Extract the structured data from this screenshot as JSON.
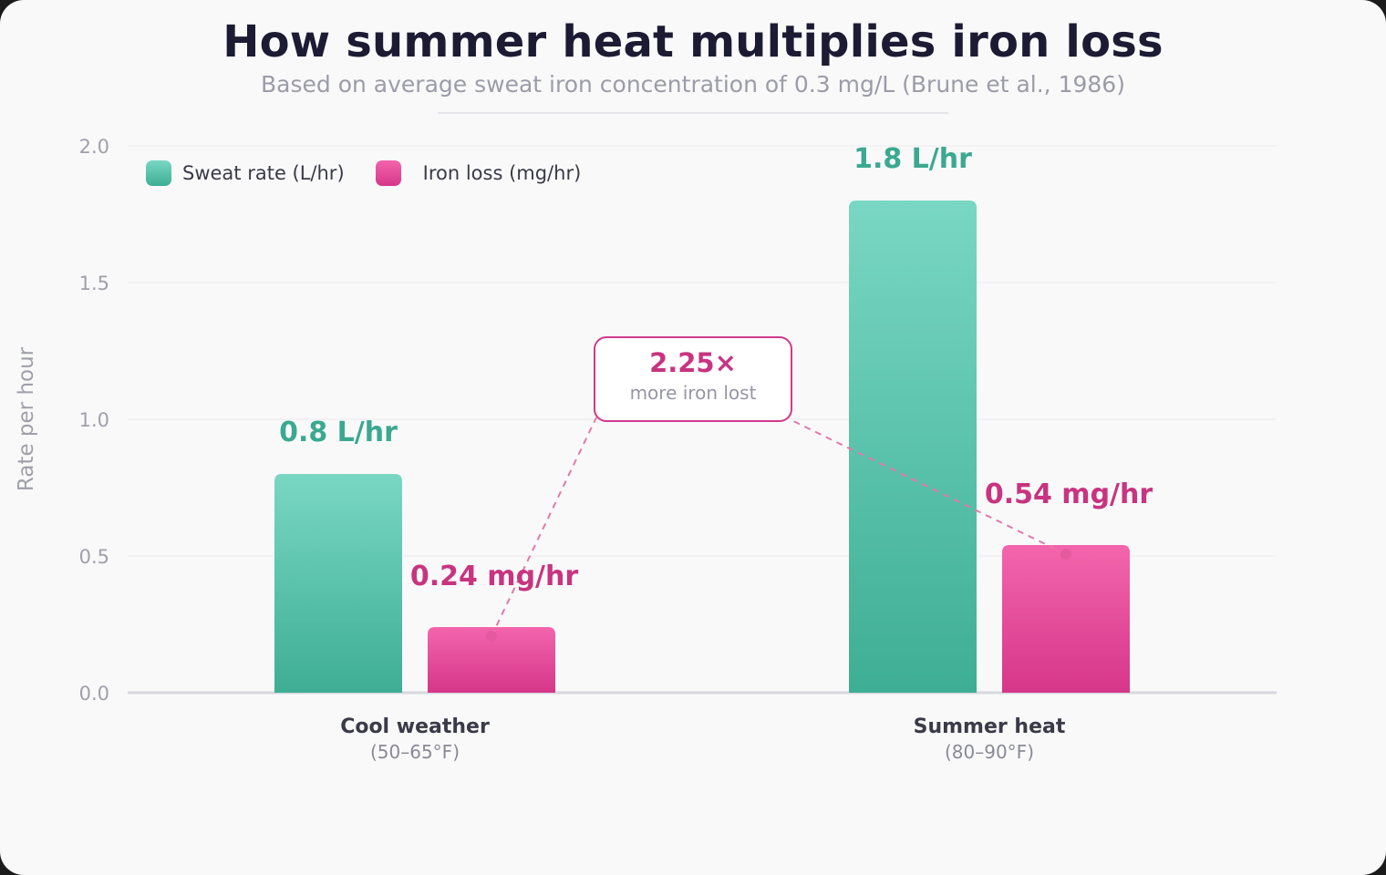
{
  "title": "How summer heat multiplies iron loss",
  "subtitle": "Based on average sweat iron concentration of 0.3 mg/L (Brune et al., 1986)",
  "colors": {
    "sweat_top": "#79d7c3",
    "sweat_bottom": "#3eae94",
    "sweat_label": "#3aa98f",
    "iron_top": "#f365ad",
    "iron_bottom": "#d63689",
    "iron_label": "#c8347f",
    "axis_text": "#a0a0aa",
    "group_label": "#3a3a48",
    "group_sub": "#8a8a96"
  },
  "legend": {
    "sweat": "Sweat rate (L/hr)",
    "iron": "Iron loss (mg/hr)"
  },
  "callout": {
    "value": "2.25×",
    "text": "more iron lost"
  },
  "chart_data": {
    "type": "bar",
    "categories": [
      "Cool weather",
      "Summer heat"
    ],
    "category_sublabels": [
      "(50–65°F)",
      "(80–90°F)"
    ],
    "series": [
      {
        "name": "Sweat rate (L/hr)",
        "values": [
          0.8,
          1.8
        ],
        "labels": [
          "0.8 L/hr",
          "1.8 L/hr"
        ]
      },
      {
        "name": "Iron loss (mg/hr)",
        "values": [
          0.24,
          0.54
        ],
        "labels": [
          "0.24 mg/hr",
          "0.54 mg/hr"
        ]
      }
    ],
    "ylabel": "Rate per hour",
    "ylim": [
      0,
      2.0
    ],
    "yticks": [
      "0.0",
      "0.5",
      "1.0",
      "1.5",
      "2.0"
    ],
    "yticks_values": [
      0,
      0.5,
      1.0,
      1.5,
      2.0
    ],
    "grid": true,
    "legend_position": "top-left",
    "annotation": "2.25× more iron lost"
  }
}
